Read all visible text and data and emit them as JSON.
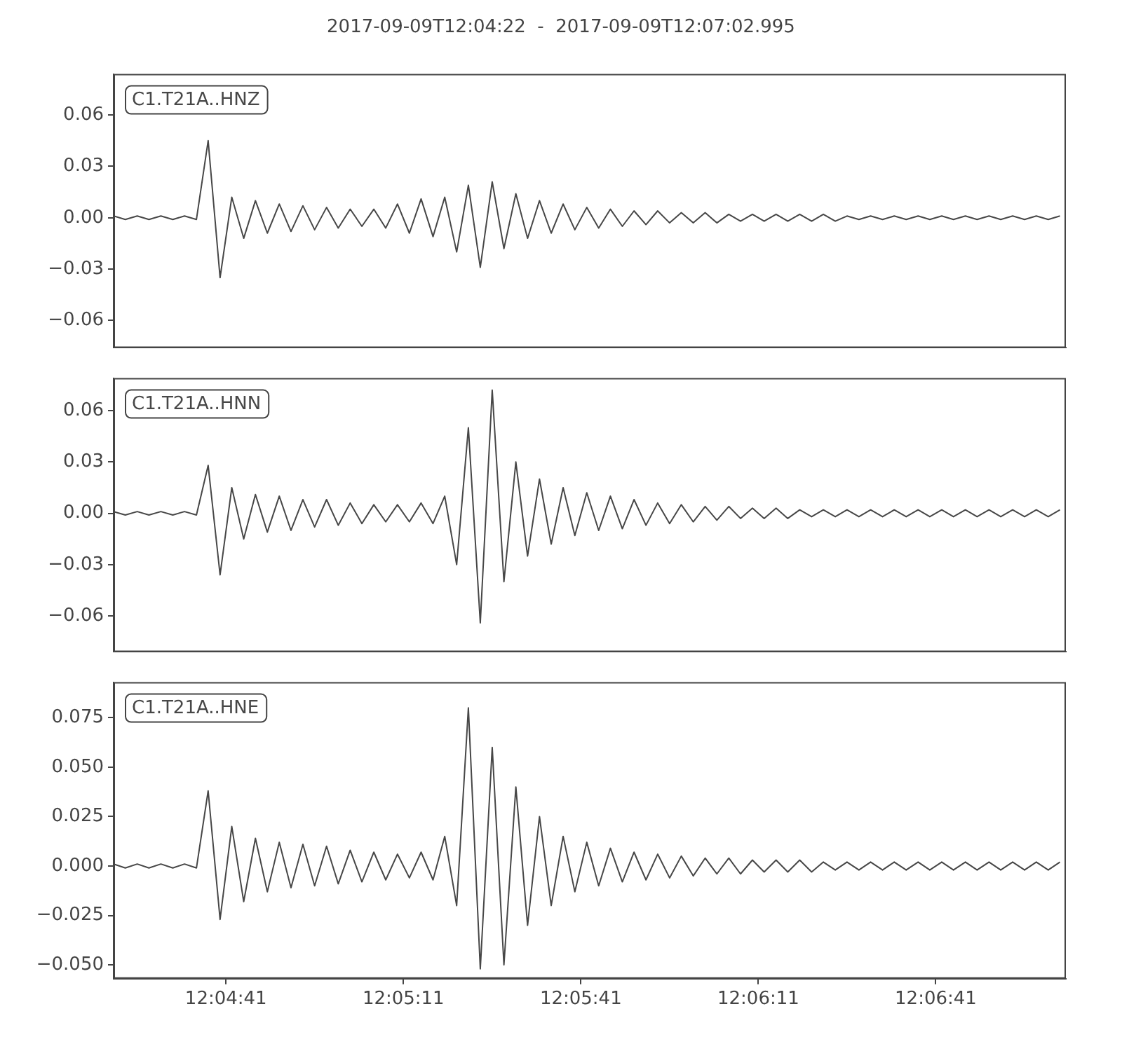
{
  "chart_data": [
    {
      "type": "line",
      "title": "2017-09-09T12:04:22  -  2017-09-09T12:07:02.995",
      "legend": "top left",
      "tick_labels": "y",
      "x": [
        12.07278,
        12.07333,
        12.07389,
        12.07444,
        12.075,
        12.07556,
        12.07611,
        12.07667,
        12.07722,
        12.07778,
        12.07833,
        12.07889,
        12.07944,
        12.08,
        12.08056,
        12.08111,
        12.08167,
        12.08222,
        12.08278,
        12.08333,
        12.08389,
        12.08444,
        12.085,
        12.08556,
        12.08611,
        12.08667,
        12.08722,
        12.08778,
        12.08833,
        12.08889,
        12.08944,
        12.09,
        12.09056,
        12.09111,
        12.09167,
        12.09222,
        12.09278,
        12.09333,
        12.09389,
        12.09444,
        12.095,
        12.09556,
        12.09611,
        12.09667,
        12.09722,
        12.09778,
        12.09833,
        12.09889,
        12.09944,
        12.1,
        12.10056,
        12.10111,
        12.10167,
        12.10222,
        12.10278,
        12.10333,
        12.10389,
        12.10444,
        12.105,
        12.10556,
        12.10611,
        12.10667,
        12.10722,
        12.10778,
        12.10833,
        12.10889,
        12.10944,
        12.11,
        12.11056,
        12.11111,
        12.11167,
        12.11222,
        12.11278,
        12.11333,
        12.11389,
        12.11444,
        12.115,
        12.11556,
        12.11611,
        12.11667,
        12.11722
      ],
      "xlim": [
        12.07278,
        12.1175
      ],
      "xticks": [
        {
          "value": 12.078056,
          "label": null
        },
        {
          "value": 12.086389,
          "label": null
        },
        {
          "value": 12.094722,
          "label": null
        },
        {
          "value": 12.103056,
          "label": null
        },
        {
          "value": 12.111389,
          "label": null
        }
      ],
      "ylim": [
        -0.076,
        0.084
      ],
      "yticks": [
        {
          "value": -0.06,
          "label": "−0.06"
        },
        {
          "value": -0.03,
          "label": "−0.03"
        },
        {
          "value": 0,
          "label": "0.00"
        },
        {
          "value": 0.03,
          "label": "0.03"
        },
        {
          "value": 0.06,
          "label": "0.06"
        }
      ],
      "series": [
        {
          "name": "C1.T21A..HNZ",
          "color": "#474747",
          "values": [
            0.001,
            -0.001,
            0.001,
            -0.001,
            0.001,
            -0.001,
            0.001,
            -0.001,
            0.045,
            -0.035,
            0.012,
            -0.012,
            0.01,
            -0.009,
            0.008,
            -0.008,
            0.007,
            -0.007,
            0.006,
            -0.006,
            0.005,
            -0.005,
            0.005,
            -0.006,
            0.008,
            -0.009,
            0.011,
            -0.011,
            0.012,
            -0.02,
            0.019,
            -0.029,
            0.021,
            -0.018,
            0.014,
            -0.012,
            0.01,
            -0.009,
            0.008,
            -0.007,
            0.006,
            -0.006,
            0.005,
            -0.005,
            0.004,
            -0.004,
            0.004,
            -0.003,
            0.003,
            -0.003,
            0.003,
            -0.003,
            0.002,
            -0.002,
            0.002,
            -0.002,
            0.002,
            -0.002,
            0.002,
            -0.002,
            0.002,
            -0.002,
            0.001,
            -0.001,
            0.001,
            -0.001,
            0.001,
            -0.001,
            0.001,
            -0.001,
            0.001,
            -0.001,
            0.001,
            -0.001,
            0.001,
            -0.001,
            0.001,
            -0.001,
            0.001,
            -0.001,
            0.001
          ]
        }
      ]
    },
    {
      "type": "line",
      "legend": "top left",
      "tick_labels": "y",
      "x": [
        12.07278,
        12.07333,
        12.07389,
        12.07444,
        12.075,
        12.07556,
        12.07611,
        12.07667,
        12.07722,
        12.07778,
        12.07833,
        12.07889,
        12.07944,
        12.08,
        12.08056,
        12.08111,
        12.08167,
        12.08222,
        12.08278,
        12.08333,
        12.08389,
        12.08444,
        12.085,
        12.08556,
        12.08611,
        12.08667,
        12.08722,
        12.08778,
        12.08833,
        12.08889,
        12.08944,
        12.09,
        12.09056,
        12.09111,
        12.09167,
        12.09222,
        12.09278,
        12.09333,
        12.09389,
        12.09444,
        12.095,
        12.09556,
        12.09611,
        12.09667,
        12.09722,
        12.09778,
        12.09833,
        12.09889,
        12.09944,
        12.1,
        12.10056,
        12.10111,
        12.10167,
        12.10222,
        12.10278,
        12.10333,
        12.10389,
        12.10444,
        12.105,
        12.10556,
        12.10611,
        12.10667,
        12.10722,
        12.10778,
        12.10833,
        12.10889,
        12.10944,
        12.11,
        12.11056,
        12.11111,
        12.11167,
        12.11222,
        12.11278,
        12.11333,
        12.11389,
        12.11444,
        12.115,
        12.11556,
        12.11611,
        12.11667,
        12.11722
      ],
      "xlim": [
        12.07278,
        12.1175
      ],
      "xticks": [
        {
          "value": 12.078056,
          "label": null
        },
        {
          "value": 12.086389,
          "label": null
        },
        {
          "value": 12.094722,
          "label": null
        },
        {
          "value": 12.103056,
          "label": null
        },
        {
          "value": 12.111389,
          "label": null
        }
      ],
      "ylim": [
        -0.081,
        0.079
      ],
      "yticks": [
        {
          "value": -0.06,
          "label": "−0.06"
        },
        {
          "value": -0.03,
          "label": "−0.03"
        },
        {
          "value": 0,
          "label": "0.00"
        },
        {
          "value": 0.03,
          "label": "0.03"
        },
        {
          "value": 0.06,
          "label": "0.06"
        }
      ],
      "series": [
        {
          "name": "C1.T21A..HNN",
          "color": "#474747",
          "values": [
            0.001,
            -0.001,
            0.001,
            -0.001,
            0.001,
            -0.001,
            0.001,
            -0.001,
            0.028,
            -0.036,
            0.015,
            -0.015,
            0.011,
            -0.011,
            0.01,
            -0.01,
            0.008,
            -0.008,
            0.008,
            -0.007,
            0.006,
            -0.006,
            0.005,
            -0.005,
            0.005,
            -0.005,
            0.006,
            -0.006,
            0.01,
            -0.03,
            0.05,
            -0.064,
            0.072,
            -0.04,
            0.03,
            -0.025,
            0.02,
            -0.018,
            0.015,
            -0.013,
            0.012,
            -0.01,
            0.01,
            -0.009,
            0.008,
            -0.007,
            0.006,
            -0.006,
            0.005,
            -0.005,
            0.004,
            -0.004,
            0.004,
            -0.003,
            0.003,
            -0.003,
            0.003,
            -0.003,
            0.002,
            -0.002,
            0.002,
            -0.002,
            0.002,
            -0.002,
            0.002,
            -0.002,
            0.002,
            -0.002,
            0.002,
            -0.002,
            0.002,
            -0.002,
            0.002,
            -0.002,
            0.002,
            -0.002,
            0.002,
            -0.002,
            0.002,
            -0.002,
            0.002
          ]
        }
      ]
    },
    {
      "type": "line",
      "legend": "top left",
      "x": [
        12.07278,
        12.07333,
        12.07389,
        12.07444,
        12.075,
        12.07556,
        12.07611,
        12.07667,
        12.07722,
        12.07778,
        12.07833,
        12.07889,
        12.07944,
        12.08,
        12.08056,
        12.08111,
        12.08167,
        12.08222,
        12.08278,
        12.08333,
        12.08389,
        12.08444,
        12.085,
        12.08556,
        12.08611,
        12.08667,
        12.08722,
        12.08778,
        12.08833,
        12.08889,
        12.08944,
        12.09,
        12.09056,
        12.09111,
        12.09167,
        12.09222,
        12.09278,
        12.09333,
        12.09389,
        12.09444,
        12.095,
        12.09556,
        12.09611,
        12.09667,
        12.09722,
        12.09778,
        12.09833,
        12.09889,
        12.09944,
        12.1,
        12.10056,
        12.10111,
        12.10167,
        12.10222,
        12.10278,
        12.10333,
        12.10389,
        12.10444,
        12.105,
        12.10556,
        12.10611,
        12.10667,
        12.10722,
        12.10778,
        12.10833,
        12.10889,
        12.10944,
        12.11,
        12.11056,
        12.11111,
        12.11167,
        12.11222,
        12.11278,
        12.11333,
        12.11389,
        12.11444,
        12.115,
        12.11556,
        12.11611,
        12.11667,
        12.11722
      ],
      "xlim": [
        12.07278,
        12.1175
      ],
      "xticks": [
        {
          "value": 12.078056,
          "label": "12:04:41"
        },
        {
          "value": 12.086389,
          "label": "12:05:11"
        },
        {
          "value": 12.094722,
          "label": "12:05:41"
        },
        {
          "value": 12.103056,
          "label": "12:06:11"
        },
        {
          "value": 12.111389,
          "label": "12:06:41"
        }
      ],
      "ylim": [
        -0.057,
        0.093
      ],
      "yticks": [
        {
          "value": -0.05,
          "label": "−0.050"
        },
        {
          "value": -0.025,
          "label": "−0.025"
        },
        {
          "value": 0,
          "label": "0.000"
        },
        {
          "value": 0.025,
          "label": "0.025"
        },
        {
          "value": 0.05,
          "label": "0.050"
        },
        {
          "value": 0.075,
          "label": "0.075"
        }
      ],
      "series": [
        {
          "name": "C1.T21A..HNE",
          "color": "#474747",
          "values": [
            0.001,
            -0.001,
            0.001,
            -0.001,
            0.001,
            -0.001,
            0.001,
            -0.001,
            0.038,
            -0.027,
            0.02,
            -0.018,
            0.014,
            -0.013,
            0.012,
            -0.011,
            0.011,
            -0.01,
            0.01,
            -0.009,
            0.008,
            -0.008,
            0.007,
            -0.007,
            0.006,
            -0.006,
            0.007,
            -0.007,
            0.015,
            -0.02,
            0.08,
            -0.052,
            0.06,
            -0.05,
            0.04,
            -0.03,
            0.025,
            -0.02,
            0.015,
            -0.013,
            0.012,
            -0.01,
            0.009,
            -0.008,
            0.007,
            -0.007,
            0.006,
            -0.006,
            0.005,
            -0.005,
            0.004,
            -0.004,
            0.004,
            -0.004,
            0.003,
            -0.003,
            0.003,
            -0.003,
            0.003,
            -0.003,
            0.002,
            -0.002,
            0.002,
            -0.002,
            0.002,
            -0.002,
            0.002,
            -0.002,
            0.002,
            -0.002,
            0.002,
            -0.002,
            0.002,
            -0.002,
            0.002,
            -0.002,
            0.002,
            -0.002,
            0.002,
            -0.002,
            0.002
          ]
        }
      ]
    }
  ]
}
